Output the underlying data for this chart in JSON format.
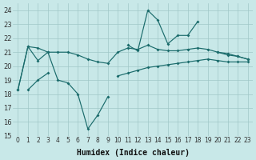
{
  "xlabel": "Humidex (Indice chaleur)",
  "background_color": "#c8e8e8",
  "grid_color": "#a0c8c8",
  "line_color": "#1a6b6b",
  "xlim": [
    -0.5,
    23.5
  ],
  "ylim": [
    15,
    24.5
  ],
  "yticks": [
    15,
    16,
    17,
    18,
    19,
    20,
    21,
    22,
    23,
    24
  ],
  "xticks": [
    0,
    1,
    2,
    3,
    4,
    5,
    6,
    7,
    8,
    9,
    10,
    11,
    12,
    13,
    14,
    15,
    16,
    17,
    18,
    19,
    20,
    21,
    22,
    23
  ],
  "x": [
    0,
    1,
    2,
    3,
    4,
    5,
    6,
    7,
    8,
    9,
    10,
    11,
    12,
    13,
    14,
    15,
    16,
    17,
    18,
    19,
    20,
    21,
    22,
    23
  ],
  "y_jagged": [
    18.3,
    21.4,
    21.3,
    21.0,
    19.0,
    18.8,
    18.0,
    15.5,
    16.5,
    17.8,
    null,
    21.5,
    21.1,
    24.0,
    23.3,
    21.6,
    22.2,
    22.2,
    23.2,
    null,
    21.0,
    20.8,
    20.7,
    20.5
  ],
  "y_middle": [
    18.3,
    21.4,
    20.4,
    21.0,
    21.0,
    21.0,
    20.8,
    20.5,
    20.3,
    20.2,
    21.0,
    21.3,
    21.2,
    21.5,
    21.2,
    21.1,
    21.1,
    21.2,
    21.3,
    21.2,
    21.0,
    20.9,
    20.7,
    20.5
  ],
  "y_bottom": [
    null,
    18.3,
    19.0,
    19.5,
    null,
    null,
    null,
    null,
    null,
    null,
    19.3,
    19.5,
    19.7,
    19.9,
    20.0,
    20.1,
    20.2,
    20.3,
    20.4,
    20.5,
    20.4,
    20.3,
    20.3,
    20.3
  ]
}
